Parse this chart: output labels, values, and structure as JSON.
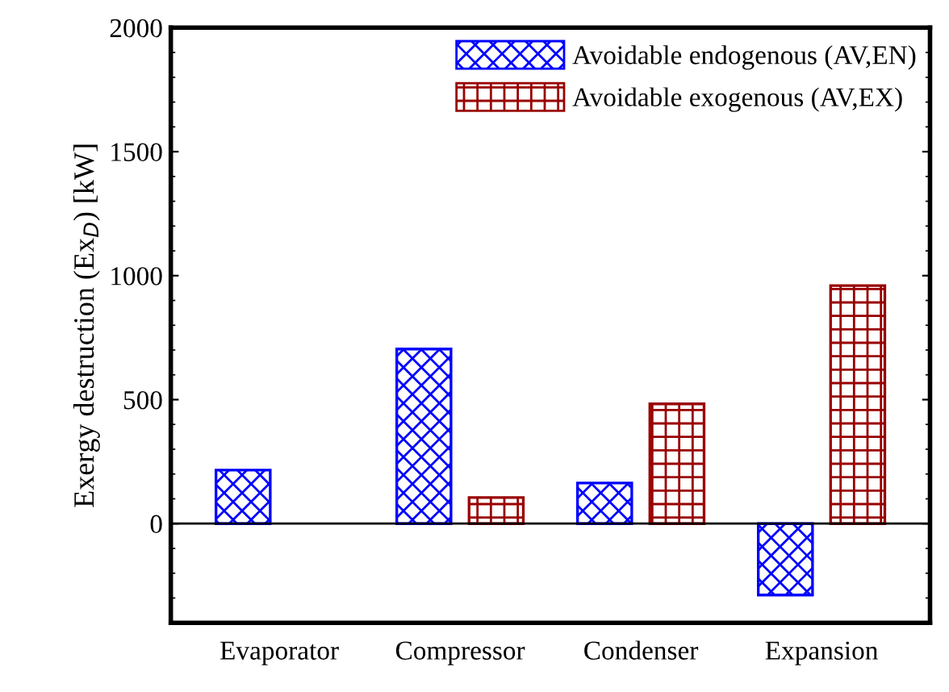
{
  "chart_data": {
    "type": "bar",
    "ylabel": "Exergy destruction (Ex$_{D}$) [kW]",
    "categories": [
      "Evaporator",
      "Compressor",
      "Condenser",
      "Expansion"
    ],
    "series": [
      {
        "name": "Avoidable endogenous (AV,EN)",
        "color": "#0000ff",
        "values": [
          216,
          704,
          164,
          -288
        ]
      },
      {
        "name": "Avoidable exogenous (AV,EX)",
        "color": "#990000",
        "values": [
          null,
          105,
          483,
          960
        ]
      }
    ],
    "ylim": [
      -400,
      2000
    ],
    "yticks": [
      {
        "value": -400,
        "label": null
      },
      0,
      500,
      1000,
      1500,
      2000
    ],
    "ref_lines": [
      {
        "axis": "y",
        "value": 0,
        "color": "#000000"
      }
    ],
    "grid": false,
    "legend": "top right"
  }
}
